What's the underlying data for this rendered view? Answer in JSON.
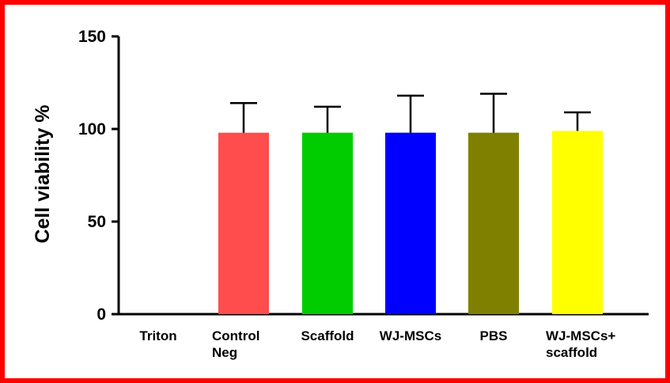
{
  "colors": {
    "frame": "#ff0000",
    "axis": "#000000",
    "bars": [
      "#ff4d4d",
      "#00cc00",
      "#0000ff",
      "#808000",
      "#ffff00"
    ]
  },
  "chart_data": {
    "type": "bar",
    "ylabel": "Cell viability %",
    "ylim": [
      0,
      150
    ],
    "yticks": [
      0,
      50,
      100,
      150
    ],
    "categories": [
      {
        "label": [
          "Triton"
        ],
        "value": 0,
        "error": 0,
        "color": null
      },
      {
        "label": [
          "Control",
          "Neg"
        ],
        "value": 98,
        "error": 16,
        "color": "#ff4d4d"
      },
      {
        "label": [
          "Scaffold"
        ],
        "value": 98,
        "error": 14,
        "color": "#00cc00"
      },
      {
        "label": [
          "WJ-MSCs"
        ],
        "value": 98,
        "error": 20,
        "color": "#0000ff"
      },
      {
        "label": [
          "PBS"
        ],
        "value": 98,
        "error": 21,
        "color": "#808000"
      },
      {
        "label": [
          "WJ-MSCs+",
          "scaffold"
        ],
        "value": 99,
        "error": 10,
        "color": "#ffff00"
      }
    ]
  }
}
